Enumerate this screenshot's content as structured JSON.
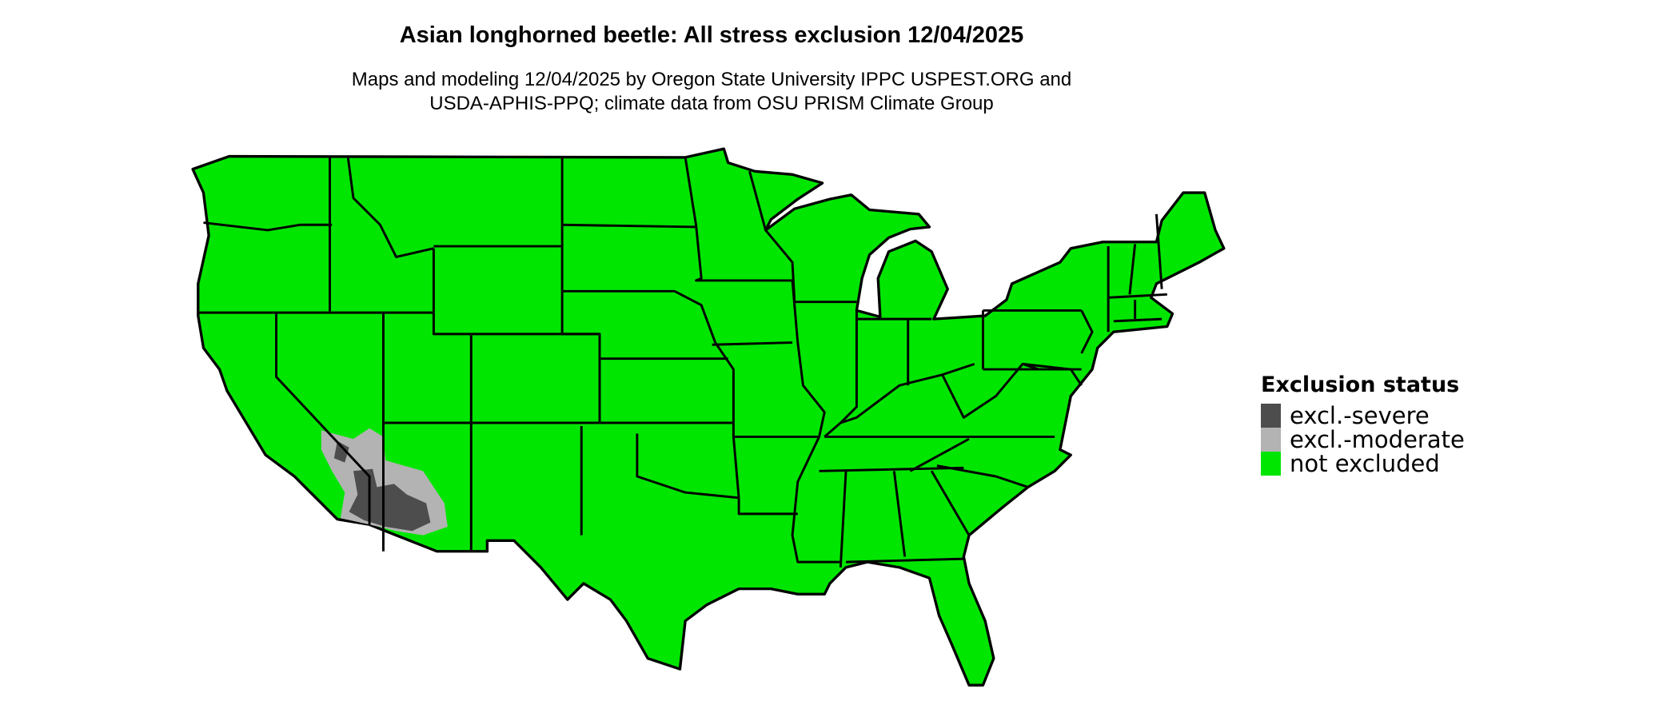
{
  "title": "Asian longhorned beetle: All stress exclusion 12/04/2025",
  "subtitle_lines": [
    "Maps and modeling 12/04/2025 by Oregon State University IPPC USPEST.ORG and",
    "USDA-APHIS-PPQ; climate data from OSU PRISM Climate Group"
  ],
  "map": {
    "region": "Contiguous United States",
    "colors": {
      "not_excluded": "#00E600",
      "moderate": "#B3B3B3",
      "severe": "#4D4D4D",
      "borders": "#000000"
    }
  },
  "legend": {
    "title": "Exclusion status",
    "items": [
      {
        "label": "excl.-severe",
        "color": "#4D4D4D"
      },
      {
        "label": "excl.-moderate",
        "color": "#B3B3B3"
      },
      {
        "label": "not excluded",
        "color": "#00E600"
      }
    ]
  }
}
